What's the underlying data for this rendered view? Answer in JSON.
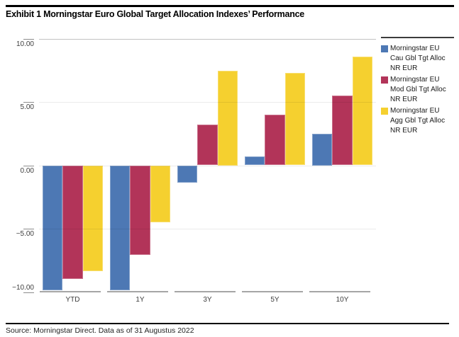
{
  "title": "Exhibit 1 Morningstar Euro Global Target Allocation Indexes’ Performance",
  "source": "Source: Morningstar Direct. Data as of 31 Augustus 2022",
  "colors": {
    "cautious_blue": "#4d78b4",
    "moderate_red": "#b23459",
    "aggressive_yellow": "#f5d02f",
    "gridline": "rgba(0,0,0,0.08)",
    "axis": "#a6a6a6"
  },
  "legend": [
    {
      "lines": [
        "Morningstar EU",
        "Cau Gbl Tgt Alloc",
        "NR EUR"
      ],
      "color": "#4d78b4"
    },
    {
      "lines": [
        "Morningstar EU",
        "Mod Gbl Tgt Alloc",
        "NR EUR"
      ],
      "color": "#b23459"
    },
    {
      "lines": [
        "Morningstar EU",
        "Agg Gbl Tgt Alloc",
        "NR EUR"
      ],
      "color": "#f5d02f"
    }
  ],
  "chart_data": {
    "type": "bar",
    "title": "Morningstar Euro Global Target Allocation Indexes' Performance",
    "categories": [
      "YTD",
      "1Y",
      "3Y",
      "5Y",
      "10Y"
    ],
    "series": [
      {
        "name": "Morningstar EU Cau Gbl Tgt Alloc NR EUR",
        "color": "#4d78b4",
        "values": [
          -9.9,
          -9.9,
          -1.4,
          0.7,
          2.5
        ]
      },
      {
        "name": "Morningstar EU Mod Gbl Tgt Alloc NR EUR",
        "color": "#b23459",
        "values": [
          -9.0,
          -7.1,
          3.2,
          4.0,
          5.5
        ]
      },
      {
        "name": "Morningstar EU Agg Gbl Tgt Alloc NR EUR",
        "color": "#f5d02f",
        "values": [
          -8.4,
          -4.5,
          7.5,
          7.3,
          8.6
        ]
      }
    ],
    "xlabel": "",
    "ylabel": "",
    "ylim": [
      -10,
      10
    ],
    "yticks": [
      10,
      5,
      0,
      -5,
      -10
    ],
    "ytick_labels": [
      "10.00",
      "5.00",
      "0.00",
      "−5.00",
      "−10.00"
    ],
    "grid": true,
    "legend_position": "right"
  }
}
